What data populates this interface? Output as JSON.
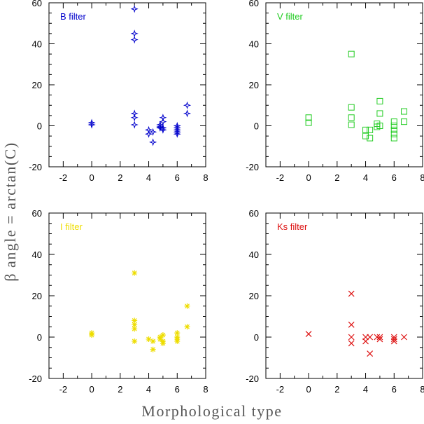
{
  "chart_data": {
    "type": "scatter",
    "xlabel": "Morphological type",
    "ylabel": "β angle = arctan(C)",
    "xlim": [
      -3,
      8
    ],
    "ylim": [
      -20,
      60
    ],
    "xticks": [
      -2,
      0,
      2,
      4,
      6,
      8
    ],
    "yticks": [
      -20,
      0,
      20,
      40,
      60
    ],
    "xtick_labels": [
      "-2",
      "0",
      "2",
      "4",
      "6",
      "8"
    ],
    "ytick_labels": [
      "-20",
      "0",
      "20",
      "40",
      "60"
    ],
    "grid": false,
    "panels": [
      {
        "label": "B filter",
        "color": "#0000cc",
        "marker": "star",
        "points": [
          {
            "x": 0,
            "y": 1.5
          },
          {
            "x": 0,
            "y": 0.5
          },
          {
            "x": 3,
            "y": 57
          },
          {
            "x": 3,
            "y": 45
          },
          {
            "x": 3,
            "y": 42
          },
          {
            "x": 3,
            "y": 6
          },
          {
            "x": 3,
            "y": 4
          },
          {
            "x": 3,
            "y": 0.5
          },
          {
            "x": 4,
            "y": -2
          },
          {
            "x": 4,
            "y": -4
          },
          {
            "x": 4.3,
            "y": -3
          },
          {
            "x": 4.3,
            "y": -8
          },
          {
            "x": 4.8,
            "y": 0.5
          },
          {
            "x": 4.8,
            "y": -0.5
          },
          {
            "x": 4.8,
            "y": -1
          },
          {
            "x": 5,
            "y": 4
          },
          {
            "x": 5,
            "y": 2
          },
          {
            "x": 5,
            "y": -1
          },
          {
            "x": 5,
            "y": -2
          },
          {
            "x": 6,
            "y": 0
          },
          {
            "x": 6,
            "y": -1
          },
          {
            "x": 6,
            "y": -2
          },
          {
            "x": 6,
            "y": -3
          },
          {
            "x": 6,
            "y": -4
          },
          {
            "x": 6.7,
            "y": 10
          },
          {
            "x": 6.7,
            "y": 6
          }
        ]
      },
      {
        "label": "V filter",
        "color": "#22cc22",
        "marker": "square",
        "points": [
          {
            "x": 0,
            "y": 4
          },
          {
            "x": 0,
            "y": 1.5
          },
          {
            "x": 3,
            "y": 35
          },
          {
            "x": 3,
            "y": 9
          },
          {
            "x": 3,
            "y": 4
          },
          {
            "x": 3,
            "y": 0.5
          },
          {
            "x": 4,
            "y": -2
          },
          {
            "x": 4,
            "y": -5
          },
          {
            "x": 4.3,
            "y": -2
          },
          {
            "x": 4.3,
            "y": -6
          },
          {
            "x": 4.8,
            "y": 1
          },
          {
            "x": 4.8,
            "y": -0.5
          },
          {
            "x": 5,
            "y": 12
          },
          {
            "x": 5,
            "y": 6
          },
          {
            "x": 5,
            "y": 0
          },
          {
            "x": 6,
            "y": 2
          },
          {
            "x": 6,
            "y": 0
          },
          {
            "x": 6,
            "y": -2
          },
          {
            "x": 6,
            "y": -4
          },
          {
            "x": 6,
            "y": -6
          },
          {
            "x": 6.7,
            "y": 7
          },
          {
            "x": 6.7,
            "y": 2
          }
        ]
      },
      {
        "label": "I filter",
        "color": "#eedd00",
        "marker": "asterisk",
        "points": [
          {
            "x": 0,
            "y": 2
          },
          {
            "x": 0,
            "y": 1
          },
          {
            "x": 3,
            "y": 31
          },
          {
            "x": 3,
            "y": 8
          },
          {
            "x": 3,
            "y": 6
          },
          {
            "x": 3,
            "y": 4
          },
          {
            "x": 3,
            "y": -2
          },
          {
            "x": 4,
            "y": -1
          },
          {
            "x": 4.3,
            "y": -2
          },
          {
            "x": 4.3,
            "y": -6
          },
          {
            "x": 4.8,
            "y": 0
          },
          {
            "x": 4.8,
            "y": -1
          },
          {
            "x": 5,
            "y": 1
          },
          {
            "x": 5,
            "y": -2
          },
          {
            "x": 5,
            "y": -3
          },
          {
            "x": 6,
            "y": 2
          },
          {
            "x": 6,
            "y": 0
          },
          {
            "x": 6,
            "y": -1
          },
          {
            "x": 6,
            "y": -2
          },
          {
            "x": 6.7,
            "y": 15
          },
          {
            "x": 6.7,
            "y": 5
          }
        ]
      },
      {
        "label": "Ks filter",
        "color": "#dd1111",
        "marker": "cross",
        "points": [
          {
            "x": 0,
            "y": 1.5
          },
          {
            "x": 3,
            "y": 21
          },
          {
            "x": 3,
            "y": 6
          },
          {
            "x": 3,
            "y": 0
          },
          {
            "x": 3,
            "y": -3
          },
          {
            "x": 4,
            "y": 0
          },
          {
            "x": 4,
            "y": -2
          },
          {
            "x": 4.3,
            "y": 0
          },
          {
            "x": 4.3,
            "y": -8
          },
          {
            "x": 4.8,
            "y": 0
          },
          {
            "x": 5,
            "y": 0
          },
          {
            "x": 5,
            "y": -1
          },
          {
            "x": 6,
            "y": 0
          },
          {
            "x": 6,
            "y": -1
          },
          {
            "x": 6,
            "y": -2
          },
          {
            "x": 6.7,
            "y": 0
          }
        ]
      }
    ]
  }
}
